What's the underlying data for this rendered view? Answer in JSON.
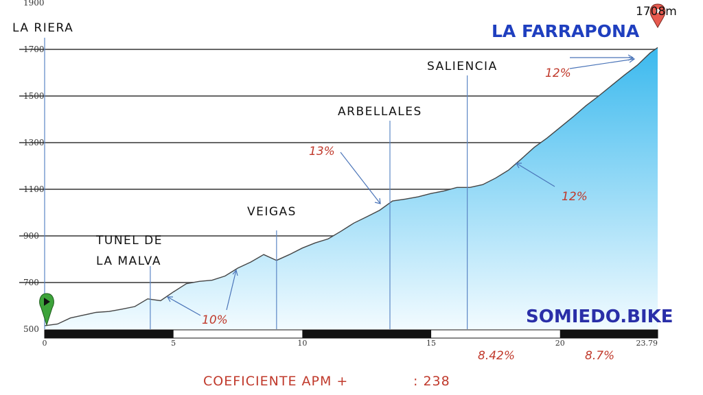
{
  "chart_data": {
    "type": "area",
    "title": "LA FARRAPONA",
    "start_label": "LA RIERA",
    "summit_label": "1708m",
    "brand": "SOMIEDO.BIKE",
    "coefficient_label": "COEFICIENTE APM +",
    "coefficient_value": ": 238",
    "xlim": [
      0,
      23.79
    ],
    "ylim": [
      500,
      1900
    ],
    "x_ticks": [
      "0",
      "5",
      "10",
      "15",
      "20",
      "23.79"
    ],
    "y_ticks": [
      "500",
      "700",
      "900",
      "1100",
      "1300",
      "1500",
      "1700",
      "1900"
    ],
    "grid": true,
    "x": [
      0,
      0.5,
      1,
      1.5,
      2,
      2.5,
      3,
      3.5,
      4,
      4.5,
      5,
      5.5,
      6,
      6.5,
      7,
      7.5,
      8,
      8.5,
      9,
      9.5,
      10,
      10.5,
      11,
      11.5,
      12,
      12.5,
      13,
      13.5,
      14,
      14.5,
      15,
      15.5,
      16,
      16.5,
      17,
      17.5,
      18,
      18.5,
      19,
      19.5,
      20,
      20.5,
      21,
      21.5,
      22,
      22.5,
      23,
      23.5,
      23.79
    ],
    "y": [
      515,
      522,
      548,
      560,
      572,
      576,
      586,
      597,
      630,
      622,
      660,
      695,
      705,
      710,
      728,
      762,
      788,
      820,
      795,
      820,
      848,
      870,
      887,
      920,
      955,
      982,
      1010,
      1050,
      1058,
      1068,
      1082,
      1093,
      1108,
      1108,
      1120,
      1148,
      1182,
      1230,
      1280,
      1320,
      1365,
      1410,
      1458,
      1500,
      1545,
      1590,
      1632,
      1685,
      1708
    ],
    "places": [
      {
        "name": "LA RIERA",
        "km": 0
      },
      {
        "name": "TUNEL DE",
        "name2": "LA MALVA",
        "km": 4.1
      },
      {
        "name": "VEIGAS",
        "km": 9
      },
      {
        "name": "ARBELLALES",
        "km": 13.4
      },
      {
        "name": "SALIENCIA",
        "km": 16.4
      }
    ],
    "gradient_annotations": [
      "10%",
      "13%",
      "12%",
      "12%",
      "8.42%",
      "8.7%"
    ]
  }
}
